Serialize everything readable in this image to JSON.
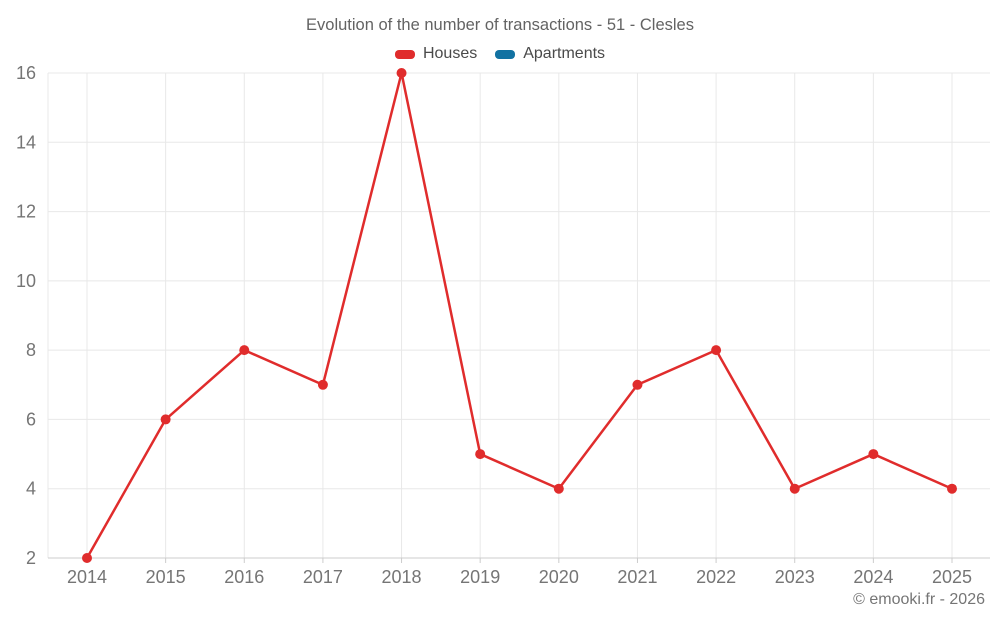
{
  "title": "Evolution of the number of transactions - 51 - Clesles",
  "legend": [
    {
      "label": "Houses",
      "color": "#e02c2c"
    },
    {
      "label": "Apartments",
      "color": "#1272a2"
    }
  ],
  "copyright": "© emooki.fr - 2026",
  "colors": {
    "grid": "#e8e8e8",
    "axis": "#cccccc",
    "tick_label": "#757575",
    "title_text": "#636363",
    "legend_text": "#4a4a4a",
    "background": "#ffffff"
  },
  "chart_data": {
    "type": "line",
    "x": [
      2014,
      2015,
      2016,
      2017,
      2018,
      2019,
      2020,
      2021,
      2022,
      2023,
      2024,
      2025
    ],
    "series": [
      {
        "name": "Houses",
        "color": "#e02c2c",
        "values": [
          2,
          6,
          8,
          7,
          16,
          5,
          4,
          7,
          8,
          4,
          5,
          4
        ]
      },
      {
        "name": "Apartments",
        "color": "#1272a2",
        "values": []
      }
    ],
    "title": "Evolution of the number of transactions - 51 - Clesles",
    "xlabel": "",
    "ylabel": "",
    "ylim": [
      2,
      16
    ],
    "yticks": [
      2,
      4,
      6,
      8,
      10,
      12,
      14,
      16
    ],
    "grid": true,
    "legend_position": "top",
    "marker_radius": 5,
    "line_width": 2.5
  }
}
